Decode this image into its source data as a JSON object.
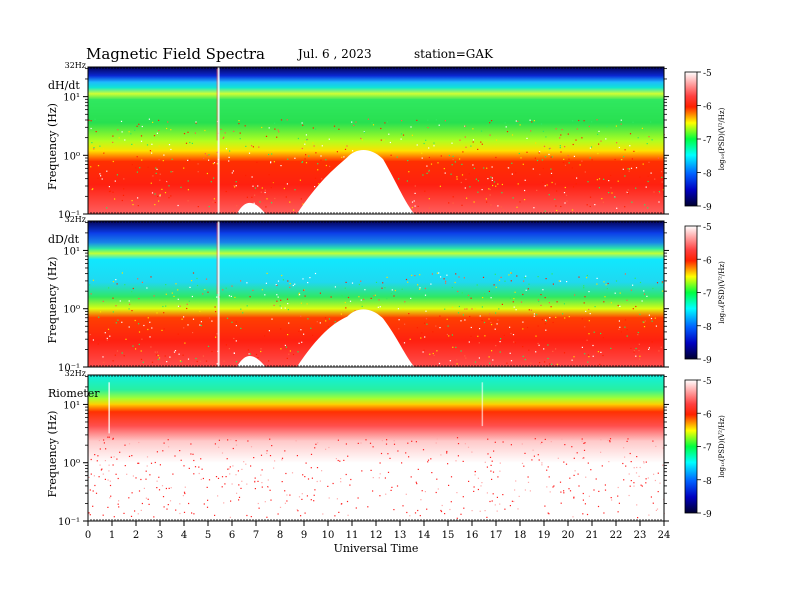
{
  "header": {
    "title": "Magnetic  Field  Spectra",
    "date": "Jul.  6  , 2023",
    "station": "station=GAK"
  },
  "chart_data": {
    "type": "heatmap",
    "xlabel": "Universal Time",
    "x_ticks": [
      "0",
      "1",
      "2",
      "3",
      "4",
      "5",
      "6",
      "7",
      "8",
      "9",
      "10",
      "11",
      "12",
      "13",
      "14",
      "15",
      "16",
      "17",
      "18",
      "19",
      "20",
      "21",
      "22",
      "23",
      "24"
    ],
    "xlim": [
      0,
      24
    ],
    "colorbar": {
      "label": "log₁₀(PSD)(V²/Hz)",
      "ticks": [
        "-5",
        "-6",
        "-7",
        "-8",
        "-9"
      ],
      "range": [
        -9,
        -5
      ],
      "scale": "white-red-yellow-green-cyan-blue-navy"
    },
    "panels": [
      {
        "name": "dH/dt",
        "ylabel": "Frequency (Hz)",
        "top_label": "32Hz",
        "y_ticks": [
          "10¹",
          "10⁰",
          "10⁻¹"
        ],
        "ylim_log10": [
          -1,
          1.505
        ]
      },
      {
        "name": "dD/dt",
        "ylabel": "Frequency (Hz)",
        "top_label": "32Hz",
        "y_ticks": [
          "10¹",
          "10⁰",
          "10⁻¹"
        ],
        "ylim_log10": [
          -1,
          1.505
        ]
      },
      {
        "name": "Riometer",
        "ylabel": "Frequency (Hz)",
        "top_label": "32Hz",
        "y_ticks": [
          "10¹",
          "10⁰",
          "10⁻¹"
        ],
        "ylim_log10": [
          -1,
          1.505
        ]
      }
    ]
  }
}
